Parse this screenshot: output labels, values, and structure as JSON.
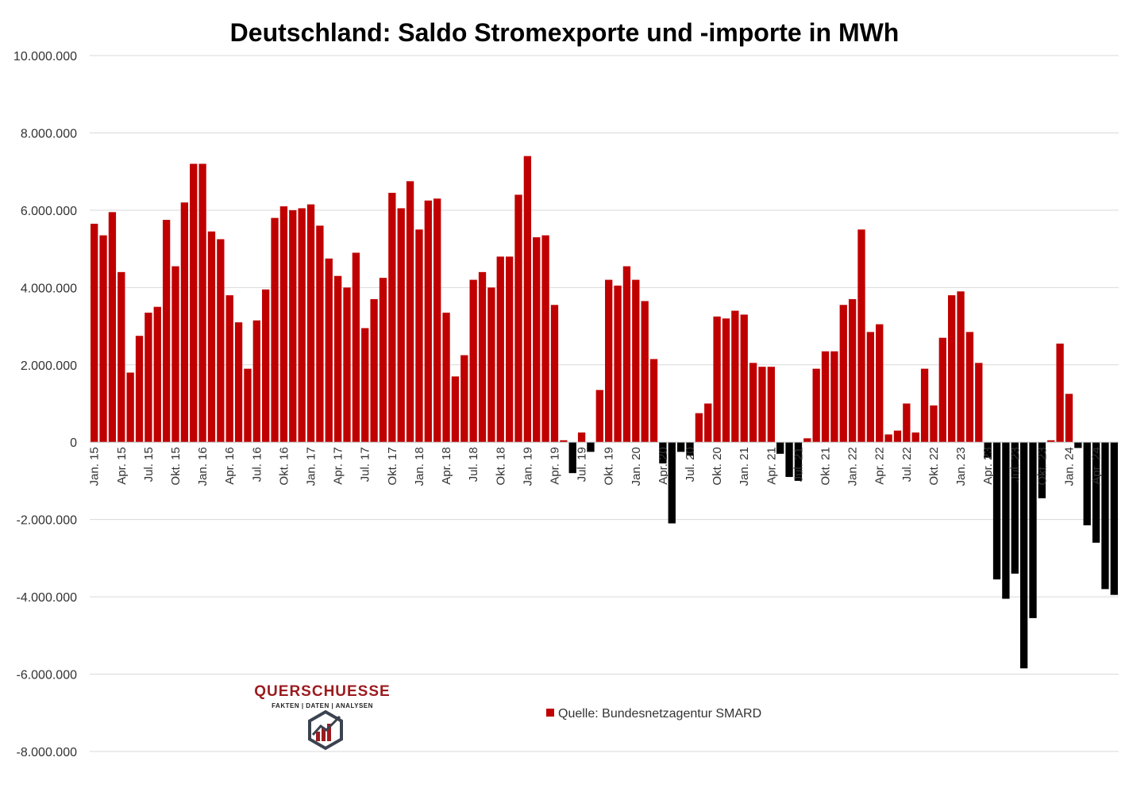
{
  "chart_data": {
    "type": "bar",
    "title": "Deutschland: Saldo Stromexporte  und -importe in MWh",
    "legend": {
      "label": "Quelle: Bundesnetzagentur SMARD",
      "placement": "bottom-center"
    },
    "ylim": [
      -8000000,
      10000000
    ],
    "y_ticks": [
      10000000,
      8000000,
      6000000,
      4000000,
      2000000,
      0,
      -2000000,
      -4000000,
      -6000000,
      -8000000
    ],
    "y_tick_labels": [
      "10.000.000",
      "8.000.000",
      "6.000.000",
      "4.000.000",
      "2.000.000",
      "0",
      "-2.000.000",
      "-4.000.000",
      "-6.000.000",
      "-8.000.000"
    ],
    "x_tick_labels": [
      "Jan. 15",
      "Apr. 15",
      "Jul. 15",
      "Okt. 15",
      "Jan. 16",
      "Apr. 16",
      "Jul. 16",
      "Okt. 16",
      "Jan. 17",
      "Apr. 17",
      "Jul. 17",
      "Okt. 17",
      "Jan. 18",
      "Apr. 18",
      "Jul. 18",
      "Okt. 18",
      "Jan. 19",
      "Apr. 19",
      "Jul. 19",
      "Okt. 19",
      "Jan. 20",
      "Apr. 20",
      "Jul. 20",
      "Okt. 20",
      "Jan. 21",
      "Apr. 21",
      "Jul. 21",
      "Okt. 21",
      "Jan. 22",
      "Apr. 22",
      "Jul. 22",
      "Okt. 22",
      "Jan. 23",
      "Apr. 23",
      "Jul. 23",
      "Okt. 23",
      "Jan. 24",
      "Apr. 24"
    ],
    "grid": true,
    "colors": {
      "positive": "#c00000",
      "negative": "#000000"
    },
    "values": [
      5650000,
      5350000,
      5950000,
      4400000,
      1800000,
      2750000,
      3350000,
      3500000,
      5750000,
      4550000,
      6200000,
      7200000,
      7200000,
      5450000,
      5250000,
      3800000,
      3100000,
      1900000,
      3150000,
      3950000,
      5800000,
      6100000,
      6000000,
      6050000,
      6150000,
      5600000,
      4750000,
      4300000,
      4000000,
      4900000,
      2950000,
      3700000,
      4250000,
      6450000,
      6050000,
      6750000,
      5500000,
      6250000,
      6300000,
      3350000,
      1700000,
      2250000,
      4200000,
      4400000,
      4000000,
      4800000,
      4800000,
      6400000,
      7400000,
      5300000,
      5350000,
      3550000,
      50000,
      -800000,
      250000,
      -250000,
      1350000,
      4200000,
      4050000,
      4550000,
      4200000,
      3650000,
      2150000,
      -550000,
      -2100000,
      -250000,
      -350000,
      750000,
      1000000,
      3250000,
      3200000,
      3400000,
      3300000,
      2050000,
      1950000,
      1950000,
      -300000,
      -900000,
      -1000000,
      100000,
      1900000,
      2350000,
      2350000,
      3550000,
      3700000,
      5500000,
      2850000,
      3050000,
      200000,
      300000,
      1000000,
      250000,
      1900000,
      950000,
      2700000,
      3800000,
      3900000,
      2850000,
      2050000,
      -400000,
      -3550000,
      -4050000,
      -3400000,
      -5850000,
      -4550000,
      -1450000,
      50000,
      2550000,
      1250000,
      -150000,
      -2150000,
      -2600000,
      -3800000,
      -3950000
    ]
  },
  "branding": {
    "name": "QUERSCHUESSE",
    "tagline": "FAKTEN | DATEN | ANALYSEN",
    "colors": {
      "name": "#9b1b1f",
      "mark": "#3b4350"
    }
  }
}
